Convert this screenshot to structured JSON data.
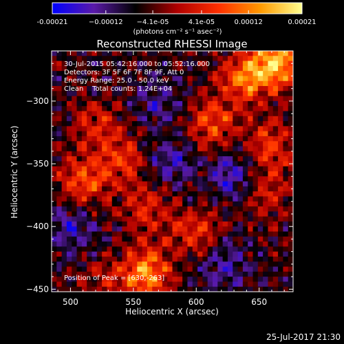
{
  "chart_data": {
    "type": "heatmap",
    "title": "Reconstructed RHESSI Image",
    "xlabel": "Heliocentric X (arcsec)",
    "ylabel": "Heliocentric Y (arcsec)",
    "xlim": [
      485,
      677
    ],
    "ylim": [
      -452,
      -260
    ],
    "x_ticks": [
      500,
      550,
      600,
      650
    ],
    "y_ticks": [
      -300,
      -350,
      -400,
      -450
    ],
    "x_tick_labels": [
      "500",
      "550",
      "600",
      "650"
    ],
    "y_tick_labels": [
      "−300",
      "−350",
      "−400",
      "−450"
    ],
    "colorbar": {
      "range": [
        -0.00021,
        0.00021
      ],
      "ticks": [
        -0.00021,
        -0.00012,
        -4.1e-05,
        4.1e-05,
        0.00012,
        0.00021
      ],
      "tick_labels": [
        "-0.00021",
        "−0.00012",
        "−4.1e-05",
        "4.1e-05",
        "0.00012",
        "0.00021"
      ],
      "unit_label": "(photons cm⁻² s⁻¹ asec⁻²)",
      "colors": [
        "#0000ff",
        "#5a1aa8",
        "#000000",
        "#b00000",
        "#ff3000",
        "#ff9900",
        "#ffff90"
      ]
    },
    "annotations": [
      "30-Jul-2015 05:42:16.000 to 05:52:16.000",
      "Detectors: 3F 5F 6F 7F 8F 9F, Att 0",
      "Energy Range: 25.0 - 50.0 keV",
      "Clean    Total counts: 1.24E+04"
    ],
    "peak_label": "Position of Peak = [630,-263]",
    "peak": [
      630,
      -263
    ],
    "features": [
      {
        "x": 665,
        "y": -268,
        "value": 0.00021
      },
      {
        "x": 640,
        "y": -282,
        "value": 0.00017
      },
      {
        "x": 612,
        "y": -318,
        "value": 0.00013
      },
      {
        "x": 520,
        "y": -318,
        "value": 8e-05
      },
      {
        "x": 540,
        "y": -345,
        "value": 0.00011
      },
      {
        "x": 510,
        "y": -365,
        "value": 0.00013
      },
      {
        "x": 560,
        "y": -385,
        "value": 0.0001
      },
      {
        "x": 600,
        "y": -405,
        "value": 0.00011
      },
      {
        "x": 560,
        "y": -437,
        "value": 0.00019
      },
      {
        "x": 660,
        "y": -335,
        "value": 0.00012
      },
      {
        "x": 655,
        "y": -372,
        "value": 9e-05
      },
      {
        "x": 525,
        "y": -445,
        "value": 6e-05
      },
      {
        "x": 580,
        "y": -348,
        "value": -8e-05
      },
      {
        "x": 630,
        "y": -360,
        "value": -0.0001
      },
      {
        "x": 500,
        "y": -400,
        "value": -9e-05
      },
      {
        "x": 570,
        "y": -300,
        "value": -7e-05
      },
      {
        "x": 620,
        "y": -430,
        "value": -8e-05
      }
    ]
  },
  "footer": {
    "timestamp": "25-Jul-2017 21:30"
  }
}
